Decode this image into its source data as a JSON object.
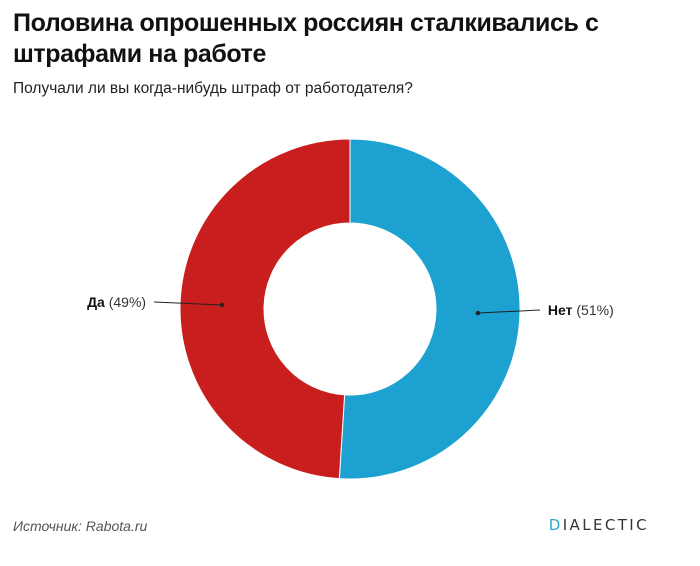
{
  "header": {
    "title": "Половина опрошенных россиян сталкивались с штрафами на работе",
    "subtitle": "Получали ли вы когда-нибудь штраф от работодателя?"
  },
  "chart_data": {
    "type": "pie",
    "donut": true,
    "start": "12 o'clock, clockwise",
    "series": [
      {
        "name": "Нет",
        "value": 51,
        "label_suffix": "(51%)",
        "color": "#1ca1d0"
      },
      {
        "name": "Да",
        "value": 49,
        "label_suffix": "(49%)",
        "color": "#c91e1e"
      }
    ]
  },
  "footer": {
    "source": "Источник: Rabota.ru",
    "brand_prefix": "D",
    "brand_rest": "IALECTIC",
    "brand_accent": "#2aa8c9"
  }
}
